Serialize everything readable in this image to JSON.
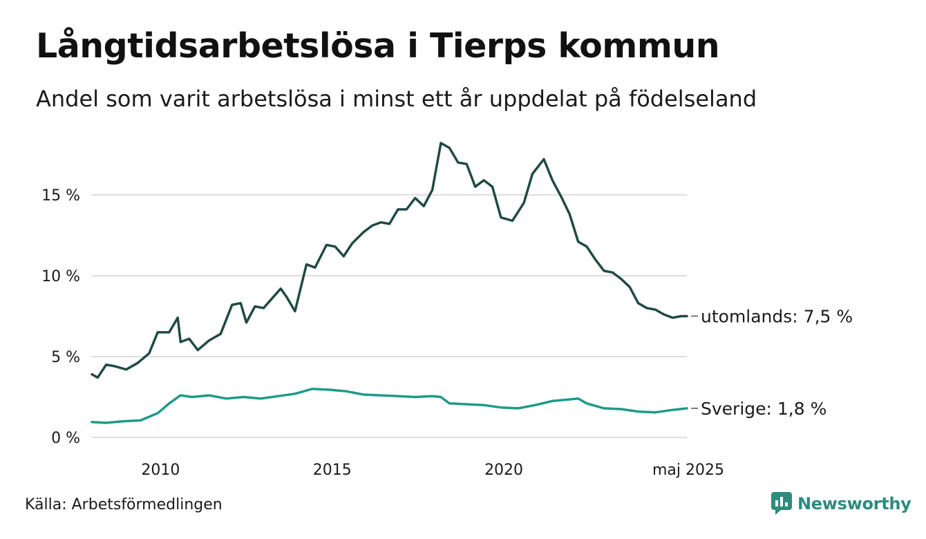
{
  "title": "Långtidsarbetslösa i Tierps kommun",
  "subtitle": "Andel som varit arbetslösa i minst ett år uppdelat på födelseland",
  "source": "Källa: Arbetsförmedlingen",
  "brand": {
    "name": "Newsworthy",
    "icon": "newsworthy-logo-icon"
  },
  "colors": {
    "utomlands": "#1f4a45",
    "sverige": "#1e9a8a",
    "grid": "#dddddd",
    "brand": "#2e8b7d"
  },
  "chart_data": {
    "type": "line",
    "title": "",
    "xlabel": "",
    "ylabel": "",
    "ylim": [
      0,
      18.5
    ],
    "xlim": [
      "2008-01",
      "2025-05"
    ],
    "grid": true,
    "y_ticks": [
      0,
      5,
      10,
      15
    ],
    "y_tick_labels": [
      "0 %",
      "5 %",
      "10 %",
      "15 %"
    ],
    "x_ticks": [
      "2010-01",
      "2015-01",
      "2020-01",
      "2025-05"
    ],
    "x_tick_labels": [
      "2010",
      "2015",
      "2020",
      "maj 2025"
    ],
    "series": [
      {
        "name": "utomlands",
        "end_label": "utomlands: 7,5 %",
        "points": [
          [
            "2008-01",
            3.9
          ],
          [
            "2008-03",
            3.7
          ],
          [
            "2008-06",
            4.5
          ],
          [
            "2008-09",
            4.4
          ],
          [
            "2009-01",
            4.2
          ],
          [
            "2009-05",
            4.6
          ],
          [
            "2009-09",
            5.2
          ],
          [
            "2009-12",
            6.5
          ],
          [
            "2010-04",
            6.5
          ],
          [
            "2010-07",
            7.4
          ],
          [
            "2010-08",
            5.9
          ],
          [
            "2010-11",
            6.1
          ],
          [
            "2011-02",
            5.4
          ],
          [
            "2011-06",
            6.0
          ],
          [
            "2011-10",
            6.4
          ],
          [
            "2012-02",
            8.2
          ],
          [
            "2012-05",
            8.3
          ],
          [
            "2012-07",
            7.1
          ],
          [
            "2012-10",
            8.1
          ],
          [
            "2013-01",
            8.0
          ],
          [
            "2013-04",
            8.6
          ],
          [
            "2013-07",
            9.2
          ],
          [
            "2013-09",
            8.7
          ],
          [
            "2013-12",
            7.8
          ],
          [
            "2014-04",
            10.7
          ],
          [
            "2014-07",
            10.5
          ],
          [
            "2014-11",
            11.9
          ],
          [
            "2015-02",
            11.8
          ],
          [
            "2015-05",
            11.2
          ],
          [
            "2015-08",
            12.0
          ],
          [
            "2015-12",
            12.7
          ],
          [
            "2016-03",
            13.1
          ],
          [
            "2016-06",
            13.3
          ],
          [
            "2016-09",
            13.2
          ],
          [
            "2016-12",
            14.1
          ],
          [
            "2017-03",
            14.1
          ],
          [
            "2017-06",
            14.8
          ],
          [
            "2017-09",
            14.3
          ],
          [
            "2017-12",
            15.3
          ],
          [
            "2018-03",
            18.2
          ],
          [
            "2018-06",
            17.9
          ],
          [
            "2018-09",
            17.0
          ],
          [
            "2018-12",
            16.9
          ],
          [
            "2019-03",
            15.5
          ],
          [
            "2019-06",
            15.9
          ],
          [
            "2019-09",
            15.5
          ],
          [
            "2019-12",
            13.6
          ],
          [
            "2020-04",
            13.4
          ],
          [
            "2020-08",
            14.5
          ],
          [
            "2020-11",
            16.3
          ],
          [
            "2021-03",
            17.2
          ],
          [
            "2021-06",
            15.9
          ],
          [
            "2021-09",
            14.9
          ],
          [
            "2021-12",
            13.8
          ],
          [
            "2022-03",
            12.1
          ],
          [
            "2022-06",
            11.8
          ],
          [
            "2022-09",
            11.0
          ],
          [
            "2022-12",
            10.3
          ],
          [
            "2023-03",
            10.2
          ],
          [
            "2023-06",
            9.8
          ],
          [
            "2023-09",
            9.3
          ],
          [
            "2023-12",
            8.3
          ],
          [
            "2024-03",
            8.0
          ],
          [
            "2024-06",
            7.9
          ],
          [
            "2024-09",
            7.6
          ],
          [
            "2024-12",
            7.4
          ],
          [
            "2025-03",
            7.5
          ],
          [
            "2025-05",
            7.5
          ]
        ]
      },
      {
        "name": "Sverige",
        "end_label": "Sverige: 1,8 %",
        "points": [
          [
            "2008-01",
            0.95
          ],
          [
            "2008-06",
            0.9
          ],
          [
            "2008-12",
            1.0
          ],
          [
            "2009-06",
            1.05
          ],
          [
            "2009-12",
            1.5
          ],
          [
            "2010-04",
            2.1
          ],
          [
            "2010-08",
            2.6
          ],
          [
            "2010-12",
            2.5
          ],
          [
            "2011-06",
            2.6
          ],
          [
            "2011-12",
            2.4
          ],
          [
            "2012-06",
            2.5
          ],
          [
            "2012-12",
            2.4
          ],
          [
            "2013-06",
            2.55
          ],
          [
            "2013-12",
            2.7
          ],
          [
            "2014-06",
            3.0
          ],
          [
            "2014-12",
            2.95
          ],
          [
            "2015-06",
            2.85
          ],
          [
            "2015-12",
            2.65
          ],
          [
            "2016-06",
            2.6
          ],
          [
            "2016-12",
            2.55
          ],
          [
            "2017-06",
            2.5
          ],
          [
            "2017-12",
            2.55
          ],
          [
            "2018-03",
            2.5
          ],
          [
            "2018-06",
            2.1
          ],
          [
            "2018-12",
            2.05
          ],
          [
            "2019-06",
            2.0
          ],
          [
            "2019-12",
            1.85
          ],
          [
            "2020-06",
            1.8
          ],
          [
            "2020-12",
            2.0
          ],
          [
            "2021-06",
            2.25
          ],
          [
            "2021-12",
            2.35
          ],
          [
            "2022-03",
            2.4
          ],
          [
            "2022-06",
            2.1
          ],
          [
            "2022-12",
            1.8
          ],
          [
            "2023-06",
            1.75
          ],
          [
            "2023-12",
            1.6
          ],
          [
            "2024-06",
            1.55
          ],
          [
            "2024-12",
            1.7
          ],
          [
            "2025-05",
            1.8
          ]
        ]
      }
    ]
  }
}
